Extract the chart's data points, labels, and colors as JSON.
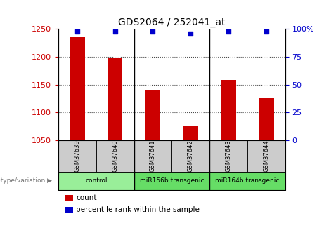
{
  "title": "GDS2064 / 252041_at",
  "samples": [
    "GSM37639",
    "GSM37640",
    "GSM37641",
    "GSM37642",
    "GSM37643",
    "GSM37644"
  ],
  "bar_values": [
    1235,
    1197,
    1140,
    1077,
    1158,
    1127
  ],
  "percentile_values": [
    98,
    98,
    98,
    96,
    98,
    98
  ],
  "bar_color": "#cc0000",
  "dot_color": "#0000cc",
  "ylim_left": [
    1050,
    1250
  ],
  "ylim_right": [
    0,
    100
  ],
  "yticks_left": [
    1050,
    1100,
    1150,
    1200,
    1250
  ],
  "yticks_right": [
    0,
    25,
    50,
    75,
    100
  ],
  "ytick_labels_right": [
    "0",
    "25",
    "50",
    "75",
    "100%"
  ],
  "groups": [
    {
      "label": "control",
      "indices": [
        0,
        1
      ],
      "color": "#99ee99"
    },
    {
      "label": "miR156b transgenic",
      "indices": [
        2,
        3
      ],
      "color": "#66dd66"
    },
    {
      "label": "miR164b transgenic",
      "indices": [
        4,
        5
      ],
      "color": "#66dd66"
    }
  ],
  "group_separator_indices": [
    2,
    4
  ],
  "genotype_label": "genotype/variation",
  "legend_count_label": "count",
  "legend_percentile_label": "percentile rank within the sample",
  "bar_bottom": 1050,
  "sample_box_color": "#cccccc",
  "bg_color": "#ffffff"
}
